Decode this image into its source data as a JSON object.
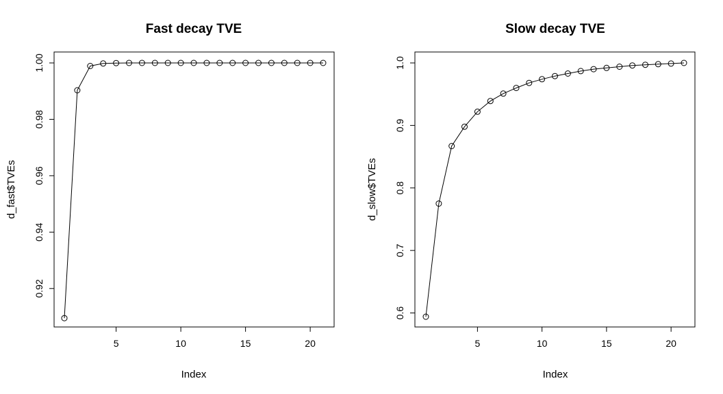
{
  "chart_data": [
    {
      "type": "line",
      "title": "Fast decay TVE",
      "xlabel": "Index",
      "ylabel": "d_fast$TVEs",
      "xlim": [
        1,
        21
      ],
      "ylim": [
        0.91,
        1.0
      ],
      "xticks": [
        5,
        10,
        15,
        20
      ],
      "yticks": [
        0.92,
        0.94,
        0.96,
        0.98,
        1.0
      ],
      "ytick_labels": [
        "0.92",
        "0.94",
        "0.96",
        "0.98",
        "1.00"
      ],
      "grid": false,
      "x": [
        1,
        2,
        3,
        4,
        5,
        6,
        7,
        8,
        9,
        10,
        11,
        12,
        13,
        14,
        15,
        16,
        17,
        18,
        19,
        20,
        21
      ],
      "y": [
        0.9095,
        0.9903,
        0.9989,
        0.9998,
        0.99995,
        1.0,
        1.0,
        1.0,
        1.0,
        1.0,
        1.0,
        1.0,
        1.0,
        1.0,
        1.0,
        1.0,
        1.0,
        1.0,
        1.0,
        1.0,
        1.0
      ]
    },
    {
      "type": "line",
      "title": "Slow decay TVE",
      "xlabel": "Index",
      "ylabel": "d_slow$TVEs",
      "xlim": [
        1,
        21
      ],
      "ylim": [
        0.594,
        1.0
      ],
      "xticks": [
        5,
        10,
        15,
        20
      ],
      "yticks": [
        0.6,
        0.7,
        0.8,
        0.9,
        1.0
      ],
      "ytick_labels": [
        "0.6",
        "0.7",
        "0.8",
        "0.9",
        "1.0"
      ],
      "grid": false,
      "x": [
        1,
        2,
        3,
        4,
        5,
        6,
        7,
        8,
        9,
        10,
        11,
        12,
        13,
        14,
        15,
        16,
        17,
        18,
        19,
        20,
        21
      ],
      "y": [
        0.594,
        0.775,
        0.867,
        0.898,
        0.922,
        0.939,
        0.951,
        0.96,
        0.968,
        0.974,
        0.979,
        0.983,
        0.987,
        0.99,
        0.992,
        0.994,
        0.996,
        0.997,
        0.998,
        0.999,
        1.0
      ]
    }
  ]
}
